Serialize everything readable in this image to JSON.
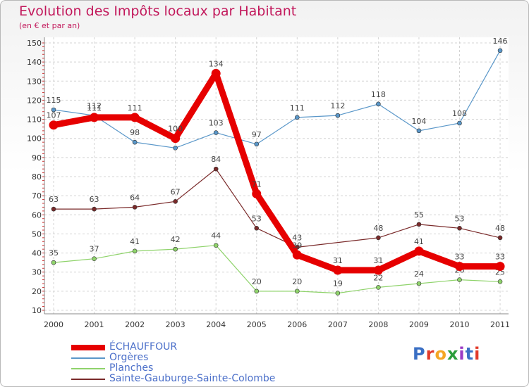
{
  "chart_data": {
    "type": "line",
    "title": "Evolution des Impôts locaux par Habitant",
    "subtitle": "(en € et par an)",
    "xlabel": "",
    "ylabel": "",
    "ylim": [
      10,
      150
    ],
    "yticks": [
      10,
      20,
      30,
      40,
      50,
      60,
      70,
      80,
      90,
      100,
      110,
      120,
      130,
      140,
      150
    ],
    "categories": [
      "2000",
      "2001",
      "2002",
      "2003",
      "2004",
      "2005",
      "2006",
      "2007",
      "2008",
      "2009",
      "2010",
      "2011"
    ],
    "grid": true,
    "legend_position": "bottom-left",
    "series": [
      {
        "name": "ÉCHAUFFOUR",
        "color": "#e60000",
        "values": [
          107,
          111,
          111,
          100,
          134,
          71,
          39,
          31,
          31,
          41,
          33,
          33
        ]
      },
      {
        "name": "Orgères",
        "color": "#5a97c9",
        "values": [
          115,
          112,
          98,
          95,
          103,
          97,
          111,
          112,
          118,
          104,
          108,
          146
        ]
      },
      {
        "name": "Planches",
        "color": "#8fd36b",
        "values": [
          35,
          37,
          41,
          42,
          44,
          20,
          20,
          19,
          22,
          24,
          26,
          25
        ]
      },
      {
        "name": "Sainte-Gauburge-Sainte-Colombe",
        "color": "#7a2a2a",
        "values": [
          63,
          63,
          64,
          67,
          84,
          53,
          43,
          null,
          48,
          55,
          53,
          48
        ]
      }
    ]
  },
  "logo": {
    "text": "Proxiti",
    "colors": [
      "#3a6fc4",
      "#e23a2a",
      "#f5a623",
      "#2a9d3a",
      "#9b3ac4",
      "#3a6fc4",
      "#e23a2a"
    ]
  }
}
